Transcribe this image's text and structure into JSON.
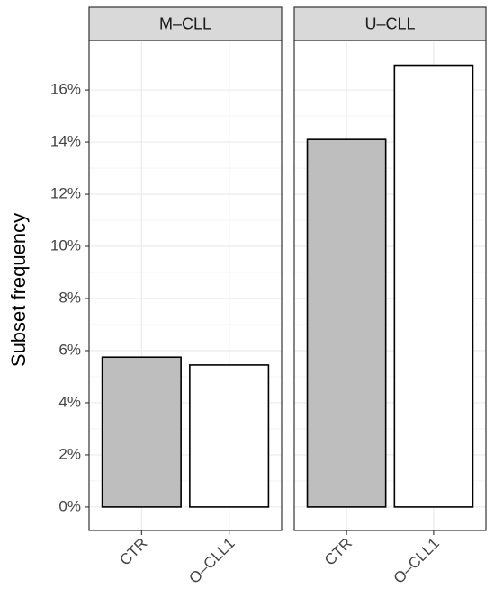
{
  "chart_data": [
    {
      "type": "bar",
      "title": "M–CLL",
      "ylabel": "Subset frequency",
      "categories": [
        "CTR",
        "O–CLL1"
      ],
      "values": [
        5.75,
        5.45
      ],
      "colors": [
        "#bebebe",
        "#ffffff"
      ],
      "ylim": [
        -0.9,
        17.9
      ],
      "yticks": [
        {
          "value": 0,
          "label": "0%"
        },
        {
          "value": 2,
          "label": "2%"
        },
        {
          "value": 4,
          "label": "4%"
        },
        {
          "value": 6,
          "label": "6%"
        },
        {
          "value": 8,
          "label": "8%"
        },
        {
          "value": 10,
          "label": "10%"
        },
        {
          "value": 12,
          "label": "12%"
        },
        {
          "value": 14,
          "label": "14%"
        },
        {
          "value": 16,
          "label": "16%"
        }
      ],
      "grid": true
    },
    {
      "type": "bar",
      "title": "U–CLL",
      "categories": [
        "CTR",
        "O–CLL1"
      ],
      "values": [
        14.1,
        16.95
      ],
      "colors": [
        "#bebebe",
        "#ffffff"
      ],
      "ylim": [
        -0.9,
        17.9
      ],
      "yticks": [
        {
          "value": 0,
          "label": "0%"
        },
        {
          "value": 2,
          "label": "2%"
        },
        {
          "value": 4,
          "label": "4%"
        },
        {
          "value": 6,
          "label": "6%"
        },
        {
          "value": 8,
          "label": "8%"
        },
        {
          "value": 10,
          "label": "10%"
        },
        {
          "value": 12,
          "label": "12%"
        },
        {
          "value": 14,
          "label": "14%"
        },
        {
          "value": 16,
          "label": "16%"
        }
      ],
      "grid": true
    }
  ]
}
